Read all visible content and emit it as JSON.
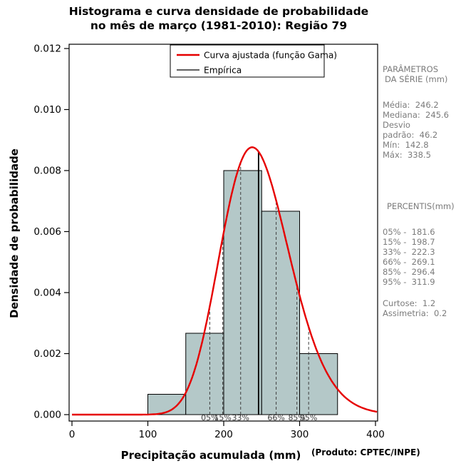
{
  "title": {
    "line1": "Histograma e curva densidade de probabilidade",
    "line2": "no mês de março (1981-2010): Região 79"
  },
  "footer": "(Produto: CPTEC/INPE)",
  "chart_data": {
    "type": "histogram+line",
    "title": "Histograma e curva densidade de probabilidade no mês de março (1981-2010): Região 79",
    "xlabel": "Precipitação acumulada (mm)",
    "ylabel": "Densidade de probabilidade",
    "xlim": [
      0,
      400
    ],
    "ylim": [
      0,
      0.012
    ],
    "xticks": [
      0,
      100,
      200,
      300,
      400
    ],
    "yticks": [
      0,
      0.002,
      0.004,
      0.006,
      0.008,
      0.01,
      0.012
    ],
    "grid": false,
    "legend_position": "top-center-inside",
    "histogram": {
      "name": "Empírica",
      "bin_edges": [
        100,
        150,
        200,
        250,
        300,
        350
      ],
      "densities": [
        0.000667,
        0.002667,
        0.008,
        0.006667,
        0.002
      ],
      "fill": "#b4c8c8",
      "stroke": "#000000"
    },
    "curve": {
      "name": "Curva ajustada (função Gama)",
      "distribution": "gamma",
      "mean": 246.2,
      "sd": 46.2,
      "color": "#e60000"
    },
    "vertical_lines": [
      {
        "name": "mediana",
        "value": 245.6
      },
      {
        "name": "media",
        "value": 246.2
      }
    ],
    "percentiles": [
      {
        "label": "05%",
        "value": 181.6
      },
      {
        "label": "15%",
        "value": 198.7
      },
      {
        "label": "33%",
        "value": 222.3
      },
      {
        "label": "66%",
        "value": 269.1
      },
      {
        "label": "85%",
        "value": 296.4
      },
      {
        "label": "95%",
        "value": 311.9
      }
    ],
    "legend": [
      {
        "label": "Curva ajustada (função Gama)",
        "color": "#e60000",
        "line_width": 2.4
      },
      {
        "label": "Empírica",
        "color": "#000000",
        "line_width": 1.3
      }
    ],
    "stats": {
      "media": 246.2,
      "mediana": 245.6,
      "desvio_padrao": 46.2,
      "min": 142.8,
      "max": 338.5,
      "curtose": 1.2,
      "assimetria": 0.2
    }
  },
  "side_panel": {
    "header1": "PARÂMETROS",
    "header2": "DA SÉRIE (mm)",
    "media": "Média:  246.2",
    "mediana": "Mediana:  245.6",
    "desvio1": "Desvio",
    "desvio2": "padrão:  46.2",
    "min": "Mín:  142.8",
    "max": "Máx:  338.5",
    "percentis_header": "PERCENTIS(mm)",
    "p05": "05% -  181.6",
    "p15": "15% -  198.7",
    "p33": "33% -  222.3",
    "p66": "66% -  269.1",
    "p85": "85% -  296.4",
    "p95": "95% -  311.9",
    "curtose": "Curtose:  1.2",
    "assimetria": "Assimetria:  0.2"
  }
}
